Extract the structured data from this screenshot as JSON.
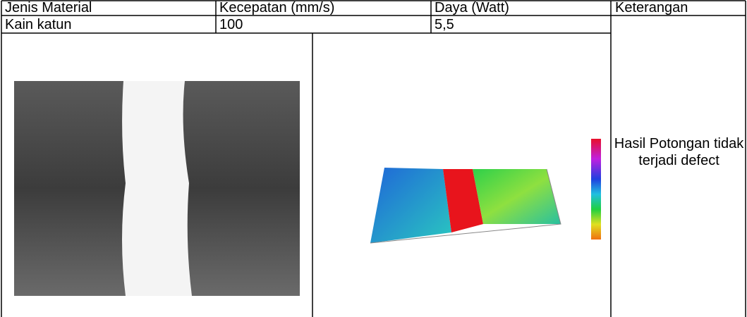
{
  "table": {
    "header": [
      "Jenis Material",
      "Kecepatan (mm/s)",
      "Daya (Watt)",
      "Keterangan"
    ],
    "rows": [
      [
        "Kain katun",
        "100",
        "5,5",
        "Hasil Potongan tidak terjadi defect"
      ]
    ]
  }
}
